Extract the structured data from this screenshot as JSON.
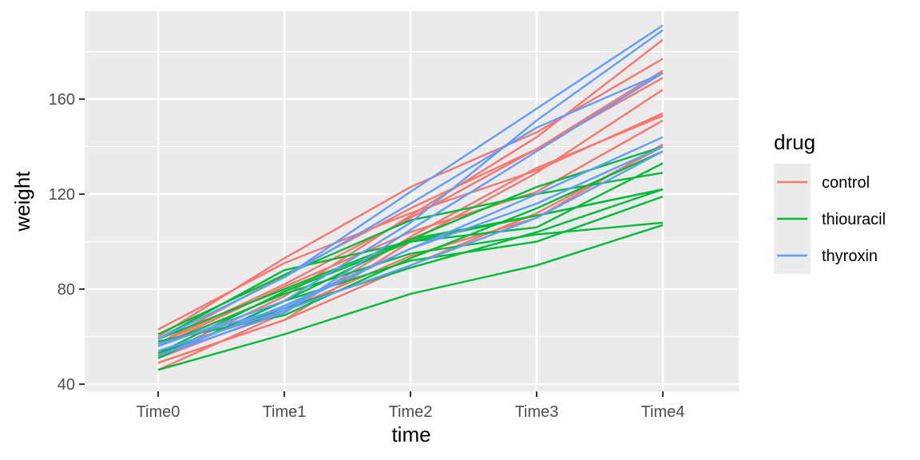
{
  "chart_data": {
    "type": "line",
    "xlabel": "time",
    "ylabel": "weight",
    "categories": [
      "Time0",
      "Time1",
      "Time2",
      "Time3",
      "Time4"
    ],
    "ylim": [
      37,
      197
    ],
    "yticks": [
      40,
      80,
      120,
      160
    ],
    "grid": true,
    "legend_placement": "right",
    "legend": {
      "title": "drug",
      "entries": [
        {
          "label": "control",
          "color": "#F8766D"
        },
        {
          "label": "thiouracil",
          "color": "#00BA38"
        },
        {
          "label": "thyroxin",
          "color": "#619CFF"
        }
      ]
    },
    "groups": [
      {
        "drug": "control",
        "color": "#F8766D",
        "lines": [
          [
            57,
            86,
            114,
            139,
            172
          ],
          [
            60,
            93,
            123,
            146,
            177
          ],
          [
            52,
            77,
            111,
            144,
            185
          ],
          [
            49,
            67,
            100,
            129,
            164
          ],
          [
            56,
            81,
            104,
            121,
            151
          ],
          [
            46,
            70,
            102,
            131,
            153
          ],
          [
            51,
            71,
            94,
            110,
            141
          ],
          [
            63,
            91,
            112,
            130,
            154
          ],
          [
            49,
            67,
            90,
            112,
            140
          ],
          [
            57,
            82,
            110,
            139,
            169
          ]
        ]
      },
      {
        "drug": "thiouracil",
        "color": "#00BA38",
        "lines": [
          [
            61,
            86,
            109,
            120,
            129
          ],
          [
            59,
            80,
            101,
            111,
            122
          ],
          [
            53,
            79,
            100,
            106,
            133
          ],
          [
            59,
            88,
            100,
            111,
            122
          ],
          [
            51,
            75,
            101,
            123,
            140
          ],
          [
            51,
            75,
            92,
            100,
            119
          ],
          [
            56,
            78,
            95,
            103,
            108
          ],
          [
            58,
            69,
            93,
            114,
            138
          ],
          [
            46,
            61,
            78,
            90,
            107
          ],
          [
            53,
            72,
            89,
            104,
            122
          ]
        ]
      },
      {
        "drug": "thyroxin",
        "color": "#619CFF",
        "lines": [
          [
            59,
            85,
            121,
            156,
            191
          ],
          [
            54,
            71,
            90,
            110,
            138
          ],
          [
            56,
            75,
            108,
            151,
            189
          ],
          [
            59,
            85,
            116,
            148,
            171
          ],
          [
            57,
            72,
            97,
            120,
            144
          ],
          [
            52,
            73,
            97,
            116,
            140
          ],
          [
            52,
            70,
            105,
            138,
            171
          ]
        ]
      }
    ]
  }
}
